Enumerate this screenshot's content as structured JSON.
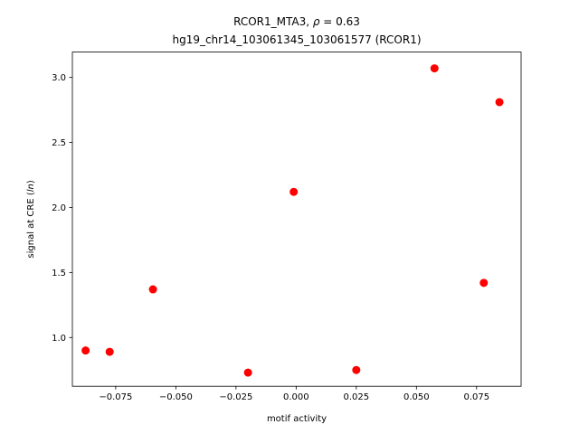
{
  "chart_data": {
    "type": "scatter",
    "title_line1_prefix": "RCOR1_MTA3, ",
    "title_line1_rho": "ρ",
    "title_line1_suffix": " = 0.63",
    "title_line2": "hg19_chr14_103061345_103061577 (RCOR1)",
    "xlabel": "motif activity",
    "ylabel_prefix": "signal at CRE (",
    "ylabel_italic": "ln",
    "ylabel_suffix": ")",
    "xlim": [
      -0.093,
      0.0935
    ],
    "ylim": [
      0.625,
      3.195
    ],
    "xticks": [
      -0.075,
      -0.05,
      -0.025,
      0.0,
      0.025,
      0.05,
      0.075
    ],
    "xtick_labels": [
      "−0.075",
      "−0.050",
      "−0.025",
      "0.000",
      "0.025",
      "0.050",
      "0.075"
    ],
    "yticks": [
      1.0,
      1.5,
      2.0,
      2.5,
      3.0
    ],
    "ytick_labels": [
      "1.0",
      "1.5",
      "2.0",
      "2.5",
      "3.0"
    ],
    "marker_color": "#ff0000",
    "points": [
      {
        "x": -0.0875,
        "y": 0.9
      },
      {
        "x": -0.0775,
        "y": 0.89
      },
      {
        "x": -0.0595,
        "y": 1.37
      },
      {
        "x": -0.02,
        "y": 0.73
      },
      {
        "x": -0.001,
        "y": 2.12
      },
      {
        "x": 0.025,
        "y": 0.75
      },
      {
        "x": 0.0575,
        "y": 3.07
      },
      {
        "x": 0.078,
        "y": 1.42
      },
      {
        "x": 0.0845,
        "y": 2.81
      }
    ],
    "grid": false
  }
}
